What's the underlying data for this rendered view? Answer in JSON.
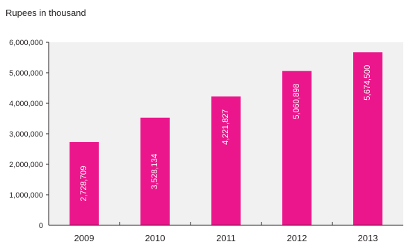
{
  "chart_data": {
    "type": "bar",
    "unit_label": "Rupees in thousand",
    "categories": [
      "2009",
      "2010",
      "2011",
      "2012",
      "2013"
    ],
    "values": [
      2728709,
      3528134,
      4221827,
      5060898,
      5674500
    ],
    "value_labels": [
      "2,728,709",
      "3,528,134",
      "4,221,827",
      "5,060,898",
      "5,674,500"
    ],
    "ylim": [
      0,
      6000000
    ],
    "yticks": [
      0,
      1000000,
      2000000,
      3000000,
      4000000,
      5000000,
      6000000
    ],
    "ytick_labels": [
      "0",
      "1,000,000",
      "2,000,000",
      "3,000,000",
      "4,000,000",
      "5,000,000",
      "6,000,000"
    ],
    "bar_color": "#ec168c",
    "plot_background": "#f1f1f2",
    "grid": false,
    "legend": "none"
  }
}
